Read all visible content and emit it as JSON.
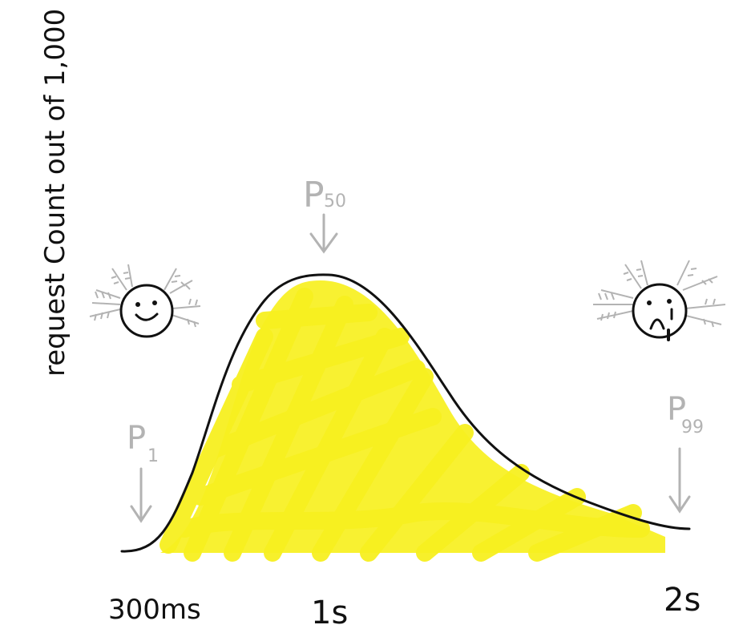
{
  "chart_data": {
    "type": "area",
    "ylabel": "request Count out of 1,000",
    "x_tick_labels": [
      "300ms",
      "1s",
      "2s"
    ],
    "annotations": [
      {
        "text": "P",
        "sub": "1"
      },
      {
        "text": "P",
        "sub": "50"
      },
      {
        "text": "P",
        "sub": "99"
      }
    ],
    "x": [
      "300ms",
      "1s",
      "2s"
    ],
    "series": [
      {
        "values": [
          0,
          1,
          0
        ]
      }
    ],
    "grid": false,
    "fill_color": "#f7f020",
    "line_color": "#111111",
    "annotation_color": "#b3b3b3"
  },
  "decorations": {
    "left_face": "happy-axolotl-icon",
    "right_face": "sad-axolotl-icon"
  }
}
